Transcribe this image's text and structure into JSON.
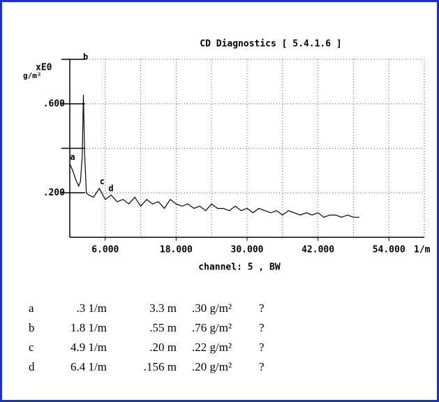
{
  "chart_data": {
    "type": "line",
    "title": "CD Diagnostics [ 5.4.1.6 ]",
    "y_label": [
      "xE0",
      "g/m²"
    ],
    "x_label": "channel: 5 , BW",
    "x_unit": "1/m",
    "xlim": [
      0,
      60
    ],
    "ylim": [
      0,
      0.8
    ],
    "xticks": [
      {
        "value": 6,
        "label": "6.000"
      },
      {
        "value": 18,
        "label": "18.000"
      },
      {
        "value": 30,
        "label": "30.000"
      },
      {
        "value": 42,
        "label": "42.000"
      },
      {
        "value": 54,
        "label": "54.000"
      }
    ],
    "yticks": [
      {
        "value": 0.2,
        "label": ".200"
      },
      {
        "value": 0.6,
        "label": ".600"
      }
    ],
    "ygrid": [
      0.2,
      0.4,
      0.6,
      0.8
    ],
    "xgrid": [
      6,
      12,
      18,
      24,
      30,
      36,
      42,
      48,
      54,
      60
    ],
    "grid": true,
    "color": "#000000",
    "x": [
      0,
      0.5,
      1,
      1.5,
      1.8,
      2.1,
      2.3,
      2.5,
      2.8,
      3.2,
      4,
      5,
      6,
      7,
      8,
      9,
      10,
      11,
      12,
      13,
      14,
      15,
      16,
      17,
      18,
      19,
      20,
      21,
      22,
      23,
      24,
      25,
      26,
      27,
      28,
      29,
      30,
      31,
      32,
      33,
      34,
      35,
      36,
      37,
      38,
      39,
      40,
      41,
      42,
      43,
      44,
      45,
      46,
      47,
      48,
      49
    ],
    "values": [
      0.33,
      0.3,
      0.26,
      0.23,
      0.25,
      0.36,
      0.64,
      0.38,
      0.2,
      0.19,
      0.18,
      0.22,
      0.17,
      0.19,
      0.16,
      0.17,
      0.15,
      0.18,
      0.14,
      0.17,
      0.15,
      0.16,
      0.13,
      0.17,
      0.15,
      0.14,
      0.15,
      0.13,
      0.14,
      0.12,
      0.15,
      0.13,
      0.13,
      0.12,
      0.14,
      0.12,
      0.13,
      0.11,
      0.13,
      0.12,
      0.11,
      0.12,
      0.1,
      0.12,
      0.11,
      0.1,
      0.11,
      0.1,
      0.11,
      0.09,
      0.1,
      0.1,
      0.09,
      0.1,
      0.09,
      0.09
    ],
    "markers": [
      {
        "label": "a",
        "x": 0,
        "y": 0.34
      },
      {
        "label": "b",
        "x": 2.2,
        "y": 0.79
      },
      {
        "label": "c",
        "x": 5,
        "y": 0.23
      },
      {
        "label": "d",
        "x": 6.5,
        "y": 0.2
      }
    ]
  },
  "table": {
    "rows": [
      [
        "a",
        ".3 1/m",
        "3.3 m",
        ".30 g/m²",
        "?"
      ],
      [
        "b",
        "1.8 1/m",
        ".55 m",
        ".76 g/m²",
        "?"
      ],
      [
        "c",
        "4.9 1/m",
        ".20 m",
        ".22 g/m²",
        "?"
      ],
      [
        "d",
        "6.4 1/m",
        ".156 m",
        ".20 g/m²",
        "?"
      ]
    ]
  }
}
